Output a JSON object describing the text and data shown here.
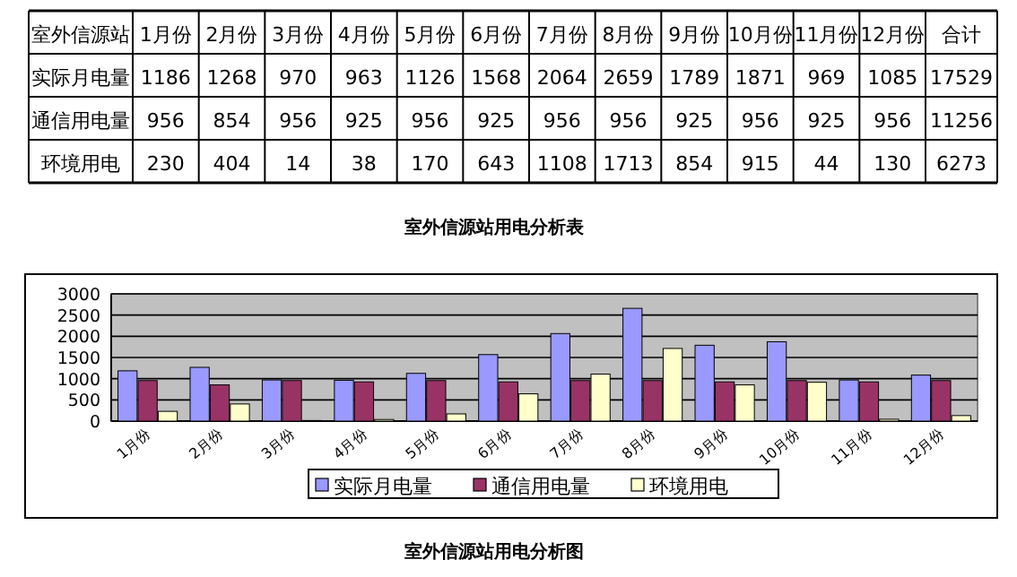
{
  "chart_data": {
    "type": "bar",
    "title": "室外信源站用电分析图",
    "subtitle": "室外信源站用电分析表",
    "annotations": [
      "室外信源站",
      "合计",
      "17529",
      "11256",
      "6273"
    ],
    "categories": [
      "1月份",
      "2月份",
      "3月份",
      "4月份",
      "5月份",
      "6月份",
      "7月份",
      "8月份",
      "9月份",
      "10月份",
      "11月份",
      "12月份"
    ],
    "series": [
      {
        "name": "实际月电量",
        "color": "#9999ff",
        "values": [
          1186,
          1268,
          970,
          963,
          1126,
          1568,
          2064,
          2659,
          1789,
          1871,
          969,
          1085
        ]
      },
      {
        "name": "通信用电量",
        "color": "#993366",
        "values": [
          956,
          854,
          956,
          925,
          956,
          925,
          956,
          956,
          925,
          956,
          925,
          956
        ]
      },
      {
        "name": "环境用电",
        "color": "#ffffcc",
        "values": [
          230,
          404,
          14,
          38,
          170,
          643,
          1108,
          1713,
          854,
          915,
          44,
          130
        ]
      }
    ],
    "ylim": [
      0,
      3000
    ],
    "yticks": [
      0,
      500,
      1000,
      1500,
      2000,
      2500,
      3000
    ],
    "grid": "y",
    "legend": "bottom",
    "data_labels": true
  }
}
